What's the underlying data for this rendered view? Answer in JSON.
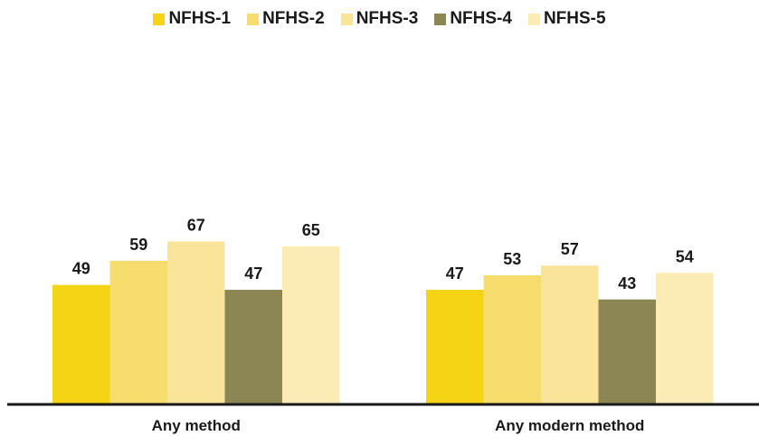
{
  "chart_data": {
    "type": "bar",
    "categories": [
      "Any method",
      "Any modern method"
    ],
    "series": [
      {
        "name": "NFHS-1",
        "color": "#f5d415",
        "values": [
          49,
          47
        ]
      },
      {
        "name": "NFHS-2",
        "color": "#f7dc6e",
        "values": [
          59,
          53
        ]
      },
      {
        "name": "NFHS-3",
        "color": "#f9e499",
        "values": [
          67,
          57
        ]
      },
      {
        "name": "NFHS-4",
        "color": "#8b8654",
        "values": [
          47,
          43
        ]
      },
      {
        "name": "NFHS-5",
        "color": "#fbecb6",
        "values": [
          65,
          54
        ]
      }
    ],
    "ylim": [
      0,
      100
    ],
    "legend_position": "top-center",
    "grid": false
  }
}
